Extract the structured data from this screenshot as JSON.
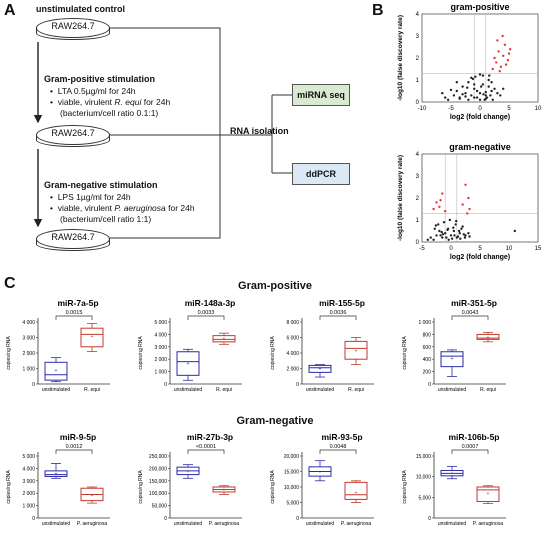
{
  "panel_a": {
    "letter": "A",
    "control_label": "unstimulated control",
    "cell_line": "RAW264.7",
    "gram_pos_title": "Gram-positive stimulation",
    "gram_pos_item1": "LTA 0.5µg/ml for 24h",
    "gram_pos_item2_prefix": "viable, virulent ",
    "gram_pos_item2_species": "R. equi",
    "gram_pos_item2_suffix": " for 24h",
    "gram_pos_item2_line2": "(bacterium/cell ratio 0.1:1)",
    "gram_neg_title": "Gram-negative stimulation",
    "gram_neg_item1": "LPS 1µg/ml for 24h",
    "gram_neg_item2_prefix": "viable, virulent ",
    "gram_neg_item2_species": "P. aeruginosa",
    "gram_neg_item2_suffix": " for 24h",
    "gram_neg_item2_line2": "(bacterium/cell ratio 1:1)",
    "rna_isolation": "RNA isolation",
    "mirna_seq": "miRNA seq",
    "ddpcr": "ddPCR",
    "colors": {
      "mirna_seq_fill": "#d9ead3",
      "ddpcr_fill": "#dbe9f7"
    }
  },
  "panel_b": {
    "letter": "B",
    "plot1_title": "gram-positive",
    "plot2_title": "gram-negative",
    "ylabel": "-log10 (false discovery rate)",
    "xlabel": "log2 (fold change)"
  },
  "panel_c": {
    "letter": "C",
    "section1_title": "Gram-positive",
    "section2_title": "Gram-negative",
    "ylabel": "copies/ng RNA",
    "cat_control": "unstimulated",
    "colors": {
      "control": "#2b2ba8",
      "treated": "#c0392b"
    }
  },
  "chart_data": [
    {
      "type": "scatter",
      "panel": "B-top",
      "title": "gram-positive",
      "xlabel": "log2 (fold change)",
      "ylabel": "-log10 (false discovery rate)",
      "xlim": [
        -10,
        10
      ],
      "ylim": [
        0,
        4
      ],
      "xticks": [
        "-10",
        "-5",
        "0",
        "5",
        "10"
      ],
      "yticks": [
        "0",
        "1",
        "2",
        "3",
        "4"
      ],
      "series": [
        {
          "color": "#222222",
          "x": [
            -6,
            -4.5,
            -4,
            -3.5,
            -3,
            -2.5,
            -2,
            -1.5,
            -1,
            -0.5,
            0,
            0.5,
            1,
            1.5,
            2,
            -2,
            -1,
            0,
            1,
            -3,
            -1.5,
            0.5,
            1.5,
            2.5,
            -4,
            -2.5,
            -0.5,
            1,
            2,
            -5,
            -3.5,
            -1,
            0,
            0.8,
            1.8,
            -2.2,
            -1.2,
            0.2,
            1.2,
            3,
            3.5,
            4,
            -0.8,
            0.6,
            1.6,
            2.2,
            -6.5,
            -5.5
          ],
          "y": [
            0.2,
            0.3,
            0.5,
            0.2,
            0.7,
            0.4,
            0.9,
            0.3,
            0.6,
            0.2,
            0.4,
            0.8,
            0.3,
            1.0,
            0.5,
            0.1,
            0.2,
            0.1,
            0.15,
            0.35,
            1.1,
            1.2,
            0.7,
            0.6,
            0.9,
            0.25,
            0.5,
            0.45,
            0.9,
            0.55,
            0.15,
            0.8,
            1.25,
            0.1,
            0.3,
            0.65,
            1.05,
            0.7,
            0.2,
            0.4,
            0.3,
            0.6,
            1.15,
            0.35,
            1.2,
            0.1,
            0.4,
            0.1
          ]
        },
        {
          "color": "#e8382e",
          "x": [
            2.2,
            2.8,
            3.2,
            3.6,
            4.0,
            4.3,
            4.8,
            5.2,
            2.5,
            3.0,
            3.4,
            3.9,
            4.5,
            5.0
          ],
          "y": [
            1.5,
            1.8,
            2.3,
            1.6,
            2.1,
            2.6,
            1.9,
            2.4,
            2.0,
            2.8,
            1.4,
            3.0,
            1.7,
            2.2
          ]
        }
      ]
    },
    {
      "type": "scatter",
      "panel": "B-bottom",
      "title": "gram-negative",
      "xlabel": "log2 (fold change)",
      "ylabel": "-log10 (false discovery rate)",
      "xlim": [
        -5,
        15
      ],
      "ylim": [
        0,
        4
      ],
      "xticks": [
        "-5",
        "0",
        "5",
        "10",
        "15"
      ],
      "yticks": [
        "0",
        "1",
        "2",
        "3",
        "4"
      ],
      "series": [
        {
          "color": "#222222",
          "x": [
            -3,
            -2.5,
            -2,
            -1.5,
            -1,
            -0.5,
            0,
            0.5,
            1,
            1.5,
            2,
            2.5,
            -2.2,
            -1.2,
            -0.2,
            0.8,
            1.8,
            -3.5,
            -2.8,
            -1.8,
            -0.8,
            0.2,
            1.2,
            2.2,
            3,
            -4,
            -1.6,
            -0.6,
            0.4,
            1.4,
            2.4,
            -2.6,
            -0.4,
            0.6,
            1.6,
            -1.4,
            0.9,
            3.2,
            11
          ],
          "y": [
            0.1,
            0.3,
            0.5,
            0.2,
            0.4,
            0.6,
            0.3,
            0.5,
            0.2,
            0.4,
            0.7,
            0.3,
            0.8,
            0.9,
            1.0,
            0.8,
            0.6,
            0.2,
            0.6,
            0.3,
            0.2,
            0.15,
            0.25,
            0.35,
            0.4,
            0.1,
            0.45,
            0.55,
            0.65,
            0.5,
            0.2,
            0.75,
            0.1,
            0.3,
            0.15,
            0.35,
            0.95,
            0.25,
            0.5
          ]
        },
        {
          "color": "#e8382e",
          "x": [
            -3,
            -2.5,
            -2,
            -1.5,
            -1,
            2,
            2.5,
            3,
            3.2,
            -1.8,
            2.8
          ],
          "y": [
            1.5,
            1.8,
            1.6,
            2.2,
            1.4,
            1.7,
            2.6,
            2.0,
            1.5,
            1.9,
            1.3
          ]
        }
      ]
    },
    {
      "type": "box",
      "panel": "C",
      "title": "miR-7a-5p",
      "ylabel": "copies/ng RNA",
      "categories": [
        "unstimulated",
        "R. equi"
      ],
      "ylim": [
        0,
        4000
      ],
      "yticks": [
        "0",
        "1 000",
        "2 000",
        "3 000",
        "4 000"
      ],
      "series": [
        {
          "name": "unstimulated",
          "min": 150,
          "q1": 250,
          "median": 600,
          "q3": 1400,
          "max": 1700,
          "mean": 900
        },
        {
          "name": "R. equi",
          "min": 2100,
          "q1": 2400,
          "median": 3200,
          "q3": 3600,
          "max": 3900,
          "mean": 3100
        }
      ],
      "pvalue": "0.0015"
    },
    {
      "type": "box",
      "panel": "C",
      "title": "miR-148a-3p",
      "ylabel": "copies/ng RNA",
      "categories": [
        "unstimulated",
        "R. equi"
      ],
      "ylim": [
        0,
        5000
      ],
      "yticks": [
        "0",
        "1 000",
        "2 000",
        "3 000",
        "4 000",
        "5 000"
      ],
      "series": [
        {
          "name": "unstimulated",
          "min": 300,
          "q1": 700,
          "median": 1800,
          "q3": 2600,
          "max": 2800,
          "mean": 1700
        },
        {
          "name": "R. equi",
          "min": 3200,
          "q1": 3400,
          "median": 3600,
          "q3": 3900,
          "max": 4100,
          "mean": 3650
        }
      ],
      "pvalue": "0.0033"
    },
    {
      "type": "box",
      "panel": "C",
      "title": "miR-155-5p",
      "ylabel": "copies/ng RNA",
      "categories": [
        "unstimulated",
        "R. equi"
      ],
      "ylim": [
        0,
        8000
      ],
      "yticks": [
        "0",
        "2 000",
        "4 000",
        "6 000",
        "8 000"
      ],
      "series": [
        {
          "name": "unstimulated",
          "min": 900,
          "q1": 1500,
          "median": 2100,
          "q3": 2400,
          "max": 2500,
          "mean": 2000
        },
        {
          "name": "R. equi",
          "min": 2500,
          "q1": 3200,
          "median": 4600,
          "q3": 5500,
          "max": 6000,
          "mean": 4300
        }
      ],
      "pvalue": "0.0036"
    },
    {
      "type": "box",
      "panel": "C",
      "title": "miR-351-5p",
      "ylabel": "copies/ng RNA",
      "categories": [
        "unstimulated",
        "R. equi"
      ],
      "ylim": [
        0,
        1000
      ],
      "yticks": [
        "0",
        "200",
        "400",
        "600",
        "800",
        "1 000"
      ],
      "series": [
        {
          "name": "unstimulated",
          "min": 120,
          "q1": 280,
          "median": 450,
          "q3": 520,
          "max": 550,
          "mean": 420
        },
        {
          "name": "R. equi",
          "min": 680,
          "q1": 720,
          "median": 740,
          "q3": 800,
          "max": 830,
          "mean": 755
        }
      ],
      "pvalue": "0.0043"
    },
    {
      "type": "box",
      "panel": "C",
      "title": "miR-9-5p",
      "ylabel": "copies/ng RNA",
      "categories": [
        "unstimulated",
        "P. aeruginosa"
      ],
      "ylim": [
        0,
        5000
      ],
      "yticks": [
        "0",
        "1 000",
        "2 000",
        "3 000",
        "4 000",
        "5 000"
      ],
      "series": [
        {
          "name": "unstimulated",
          "min": 3200,
          "q1": 3350,
          "median": 3500,
          "q3": 3800,
          "max": 4400,
          "mean": 3600
        },
        {
          "name": "P. aeruginosa",
          "min": 1200,
          "q1": 1400,
          "median": 1900,
          "q3": 2400,
          "max": 2500,
          "mean": 1850
        }
      ],
      "pvalue": "0.0012"
    },
    {
      "type": "box",
      "panel": "C",
      "title": "miR-27b-3p",
      "ylabel": "copies/ng RNA",
      "categories": [
        "unstimulated",
        "P. aeruginosa"
      ],
      "ylim": [
        0,
        250000
      ],
      "yticks": [
        "0",
        "50,000",
        "100,000",
        "150,000",
        "200,000",
        "250,000"
      ],
      "series": [
        {
          "name": "unstimulated",
          "min": 160000,
          "q1": 175000,
          "median": 190000,
          "q3": 205000,
          "max": 215000,
          "mean": 190000
        },
        {
          "name": "P. aeruginosa",
          "min": 95000,
          "q1": 105000,
          "median": 115000,
          "q3": 125000,
          "max": 130000,
          "mean": 114000
        }
      ],
      "pvalue": "<0.0001"
    },
    {
      "type": "box",
      "panel": "C",
      "title": "miR-93-5p",
      "ylabel": "copies/ng RNA",
      "categories": [
        "unstimulated",
        "P. aeruginosa"
      ],
      "ylim": [
        0,
        20000
      ],
      "yticks": [
        "0",
        "5,000",
        "10,000",
        "15,000",
        "20,000"
      ],
      "series": [
        {
          "name": "unstimulated",
          "min": 12000,
          "q1": 13500,
          "median": 15000,
          "q3": 16500,
          "max": 18500,
          "mean": 15000
        },
        {
          "name": "P. aeruginosa",
          "min": 5000,
          "q1": 6000,
          "median": 7500,
          "q3": 11500,
          "max": 12000,
          "mean": 8200
        }
      ],
      "pvalue": "0.0048"
    },
    {
      "type": "box",
      "panel": "C",
      "title": "miR-106b-5p",
      "ylabel": "copies/ng RNA",
      "categories": [
        "unstimulated",
        "P. aeruginosa"
      ],
      "ylim": [
        0,
        15000
      ],
      "yticks": [
        "0",
        "5,000",
        "10,000",
        "15,000"
      ],
      "series": [
        {
          "name": "unstimulated",
          "min": 9500,
          "q1": 10200,
          "median": 10800,
          "q3": 11500,
          "max": 12500,
          "mean": 10900
        },
        {
          "name": "P. aeruginosa",
          "min": 3500,
          "q1": 4000,
          "median": 6800,
          "q3": 7500,
          "max": 7800,
          "mean": 6000
        }
      ],
      "pvalue": "0.0007"
    }
  ]
}
